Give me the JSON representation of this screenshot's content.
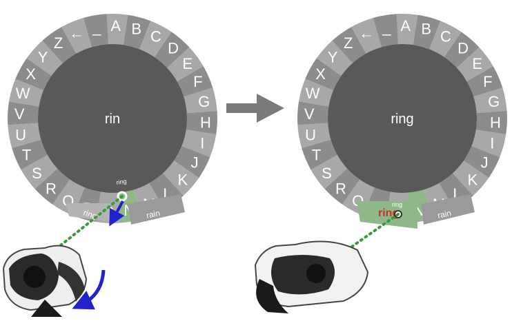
{
  "keyboard_letters": [
    "A",
    "B",
    "C",
    "D",
    "E",
    "F",
    "G",
    "H",
    "I",
    "J",
    "K",
    "L",
    "M",
    "N",
    "O",
    "P",
    "Q",
    "R",
    "S",
    "T",
    "U",
    "V",
    "W",
    "X",
    "Y",
    "Z",
    "←",
    "_"
  ],
  "left_panel": {
    "center_word": "rin",
    "suggestion_under_N": "ring",
    "suggestion_ring": "ring",
    "suggestion_rain": "rain"
  },
  "right_panel": {
    "center_word": "ring",
    "selected_letter": "N",
    "suggestion_ring": "ring",
    "suggestion_rain": "rain",
    "highlight_word": "ring",
    "cursor_label": "ring"
  },
  "colors": {
    "ring_light": "#a8a8a8",
    "ring_dark": "#8c8c8c",
    "center_disc": "#595959",
    "ring_highlight": "#8fb889",
    "ray_green": "#3a9a3a",
    "arrow_blue": "#2222cc",
    "transition_arrow": "#7a7a7a"
  },
  "icons": [
    "vr-headset-icon",
    "rotate-arrow-icon",
    "transition-arrow-icon",
    "gaze-cursor-icon"
  ]
}
